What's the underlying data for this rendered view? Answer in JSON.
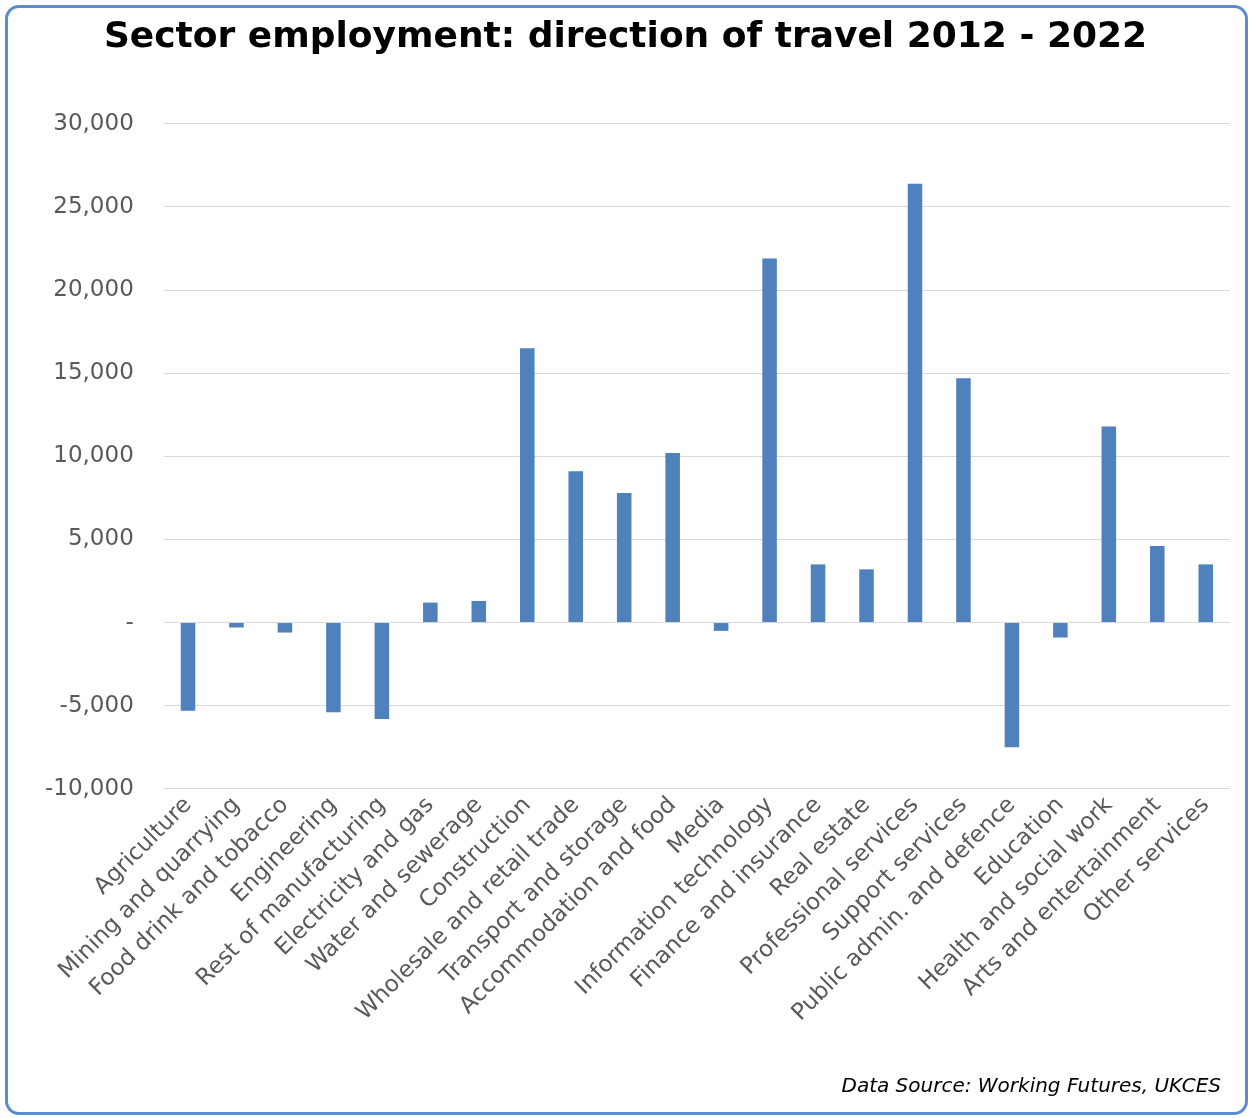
{
  "chart_data": {
    "type": "bar",
    "title": "Sector employment: direction of travel 2012 - 2022",
    "categories": [
      "Agriculture",
      "Mining and quarrying",
      "Food drink and tobacco",
      "Engineering",
      "Rest of manufacturing",
      "Electricity and gas",
      "Water and sewerage",
      "Construction",
      "Wholesale and retail trade",
      "Transport and storage",
      "Accommodation and food",
      "Media",
      "Information technology",
      "Finance and insurance",
      "Real estate",
      "Professional services",
      "Support services",
      "Public admin. and defence",
      "Education",
      "Health and social work",
      "Arts and entertainment",
      "Other services"
    ],
    "values": [
      -5300,
      -300,
      -600,
      -5400,
      -5800,
      1200,
      1300,
      16500,
      9100,
      7800,
      10200,
      -500,
      21900,
      3500,
      3200,
      26400,
      14700,
      -7500,
      -900,
      11800,
      4600,
      3500
    ],
    "color": "#4f81bd",
    "ylim": [
      -10000,
      30000
    ],
    "yticks": [
      {
        "value": -10000,
        "label": "-10,000"
      },
      {
        "value": -5000,
        "label": "-5,000"
      },
      {
        "value": 0,
        "label": "-"
      },
      {
        "value": 5000,
        "label": "5,000"
      },
      {
        "value": 10000,
        "label": "10,000"
      },
      {
        "value": 15000,
        "label": "15,000"
      },
      {
        "value": 20000,
        "label": "20,000"
      },
      {
        "value": 25000,
        "label": "25,000"
      },
      {
        "value": 30000,
        "label": "30,000"
      }
    ],
    "grid": "y",
    "legend": false,
    "annotations": [
      "Data Source: Working Futures, UKCES"
    ]
  }
}
